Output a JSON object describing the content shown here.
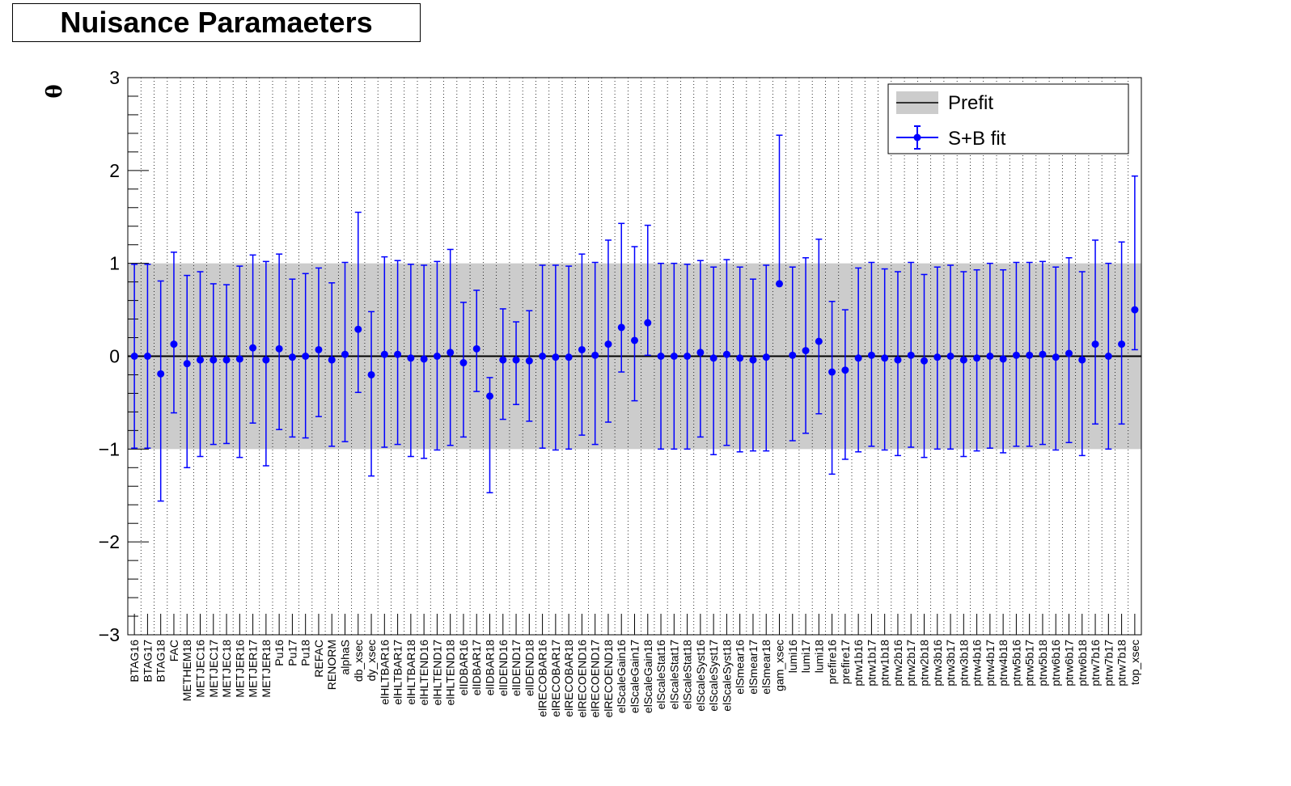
{
  "chart_data": {
    "type": "scatter",
    "title": "Nuisance Paramaeters",
    "ylabel": "θ",
    "ylim": [
      -3,
      3
    ],
    "yticks": [
      -3,
      -2,
      -1,
      0,
      1,
      2,
      3
    ],
    "ytick_labels": [
      "−3",
      "−2",
      "−1",
      "0",
      "1",
      "2",
      "3"
    ],
    "grid": true,
    "legend": {
      "placement": "top-right",
      "prefit_label": "Prefit",
      "sb_label": "S+B fit"
    },
    "prefit_band": [
      -1,
      1
    ],
    "colors": {
      "prefit": "#cccccc",
      "sbfit": "#0000ff",
      "zero_line": "#000000"
    },
    "categories": [
      "BTAG16",
      "BTAG17",
      "BTAG18",
      "FAC",
      "METHEM18",
      "METJEC16",
      "METJEC17",
      "METJEC18",
      "METJER16",
      "METJER17",
      "METJER18",
      "Pu16",
      "Pu17",
      "Pu18",
      "REFAC",
      "RENORM",
      "alphaS",
      "db_xsec",
      "dy_xsec",
      "elHLTBAR16",
      "elHLTBAR17",
      "elHLTBAR18",
      "elHLTEND16",
      "elHLTEND17",
      "elHLTEND18",
      "elIDBAR16",
      "elIDBAR17",
      "elIDBAR18",
      "elIDEND16",
      "elIDEND17",
      "elIDEND18",
      "elRECOBAR16",
      "elRECOBAR17",
      "elRECOBAR18",
      "elRECOEND16",
      "elRECOEND17",
      "elRECOEND18",
      "elScaleGain16",
      "elScaleGain17",
      "elScaleGain18",
      "elScaleStat16",
      "elScaleStat17",
      "elScaleStat18",
      "elScaleSyst16",
      "elScaleSyst17",
      "elScaleSyst18",
      "elSmear16",
      "elSmear17",
      "elSmear18",
      "gam_xsec",
      "lumi16",
      "lumi17",
      "lumi18",
      "prefire16",
      "prefire17",
      "ptrw1b16",
      "ptrw1b17",
      "ptrw1b18",
      "ptrw2b16",
      "ptrw2b17",
      "ptrw2b18",
      "ptrw3b16",
      "ptrw3b17",
      "ptrw3b18",
      "ptrw4b16",
      "ptrw4b17",
      "ptrw4b18",
      "ptrw5b16",
      "ptrw5b17",
      "ptrw5b18",
      "ptrw6b16",
      "ptrw6b17",
      "ptrw6b18",
      "ptrw7b16",
      "ptrw7b17",
      "ptrw7b18",
      "top_xsec"
    ],
    "series": [
      {
        "name": "S+B fit",
        "values": [
          0.0,
          0.0,
          -0.19,
          0.13,
          -0.08,
          -0.04,
          -0.04,
          -0.04,
          -0.03,
          0.09,
          -0.04,
          0.08,
          -0.01,
          0.0,
          0.07,
          -0.04,
          0.02,
          0.29,
          -0.2,
          0.02,
          0.02,
          -0.02,
          -0.03,
          0.0,
          0.04,
          -0.07,
          0.08,
          -0.43,
          -0.04,
          -0.04,
          -0.05,
          0.0,
          -0.01,
          -0.01,
          0.07,
          0.01,
          0.13,
          0.31,
          0.17,
          0.36,
          0.0,
          0.0,
          0.0,
          0.04,
          -0.02,
          0.02,
          -0.02,
          -0.04,
          -0.01,
          0.78,
          0.01,
          0.06,
          0.16,
          -0.17,
          -0.15,
          -0.02,
          0.01,
          -0.02,
          -0.04,
          0.01,
          -0.05,
          -0.01,
          0.0,
          -0.04,
          -0.02,
          0.0,
          -0.03,
          0.01,
          0.01,
          0.02,
          -0.01,
          0.03,
          -0.04,
          0.13,
          0.0,
          0.13,
          0.5
        ],
        "err_low": [
          -0.99,
          -0.99,
          -1.37,
          -0.74,
          -1.12,
          -1.04,
          -0.91,
          -0.9,
          -1.06,
          -0.81,
          -1.14,
          -0.87,
          -0.86,
          -0.88,
          -0.72,
          -0.93,
          -0.94,
          -0.68,
          -1.09,
          -1.0,
          -0.97,
          -1.06,
          -1.07,
          -1.01,
          -1.0,
          -0.8,
          -0.46,
          -1.04,
          -0.64,
          -0.48,
          -0.65,
          -0.99,
          -1.0,
          -0.99,
          -0.92,
          -0.96,
          -0.84,
          -0.48,
          -0.65,
          -0.35,
          -1.0,
          -1.0,
          -1.0,
          -0.91,
          -1.04,
          -0.98,
          -1.01,
          -0.98,
          -1.01,
          0.0,
          -0.92,
          -0.89,
          -0.78,
          -1.1,
          -0.96,
          -1.01,
          -0.98,
          -0.99,
          -1.03,
          -0.99,
          -1.04,
          -0.99,
          -1.0,
          -1.04,
          -1.0,
          -0.99,
          -1.01,
          -0.98,
          -0.98,
          -0.97,
          -1.0,
          -0.96,
          -1.03,
          -0.86,
          -1.0,
          -0.86,
          -0.43
        ],
        "err_high": [
          0.99,
          0.99,
          1.0,
          0.99,
          0.95,
          0.95,
          0.82,
          0.81,
          1.0,
          1.0,
          1.06,
          1.02,
          0.84,
          0.89,
          0.88,
          0.83,
          0.99,
          1.26,
          0.68,
          1.05,
          1.01,
          1.01,
          1.01,
          1.02,
          1.11,
          0.65,
          0.63,
          0.2,
          0.55,
          0.41,
          0.54,
          0.98,
          0.99,
          0.98,
          1.03,
          1.0,
          1.12,
          1.12,
          1.01,
          1.05,
          1.0,
          1.0,
          0.99,
          0.99,
          0.98,
          1.02,
          0.98,
          0.87,
          0.99,
          1.6,
          0.95,
          1.0,
          1.1,
          0.76,
          0.65,
          0.97,
          1.0,
          0.96,
          0.95,
          1.0,
          0.93,
          0.97,
          0.98,
          0.95,
          0.95,
          1.0,
          0.96,
          1.0,
          1.0,
          1.0,
          0.97,
          1.03,
          0.95,
          1.12,
          1.0,
          1.1,
          1.44
        ]
      }
    ]
  }
}
